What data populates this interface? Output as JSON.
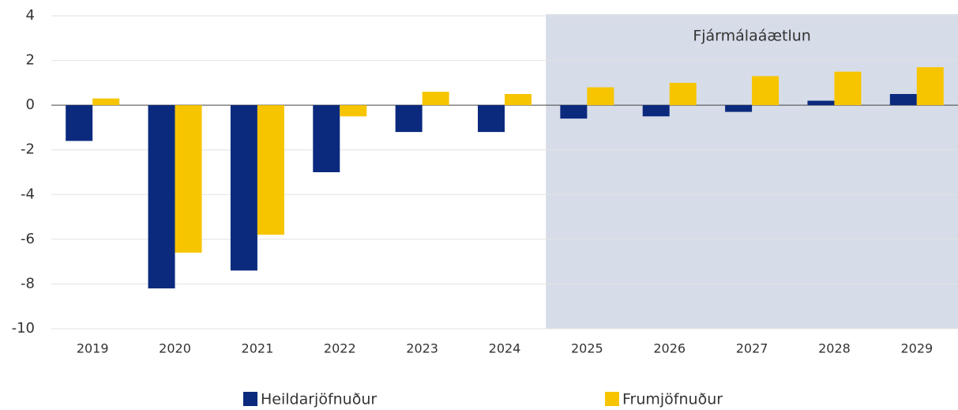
{
  "chart_data": {
    "type": "bar",
    "annotation": "Fjármálaáætlun",
    "forecast_start": "2025",
    "categories": [
      "2019",
      "2020",
      "2021",
      "2022",
      "2023",
      "2024",
      "2025",
      "2026",
      "2027",
      "2028",
      "2029"
    ],
    "series": [
      {
        "name": "Heildarjöfnuður",
        "color": "#0b2a7e",
        "values": [
          -1.6,
          -8.2,
          -7.4,
          -3.0,
          -1.2,
          -1.2,
          -0.6,
          -0.5,
          -0.3,
          0.2,
          0.5
        ]
      },
      {
        "name": "Frumjöfnuður",
        "color": "#f7c500",
        "values": [
          0.3,
          -6.6,
          -5.8,
          -0.5,
          0.6,
          0.5,
          0.8,
          1.0,
          1.3,
          1.5,
          1.7
        ]
      }
    ],
    "ylim": [
      -10,
      4
    ],
    "yticks": [
      -10,
      -8,
      -6,
      -4,
      -2,
      0,
      2,
      4
    ],
    "grid": true
  }
}
